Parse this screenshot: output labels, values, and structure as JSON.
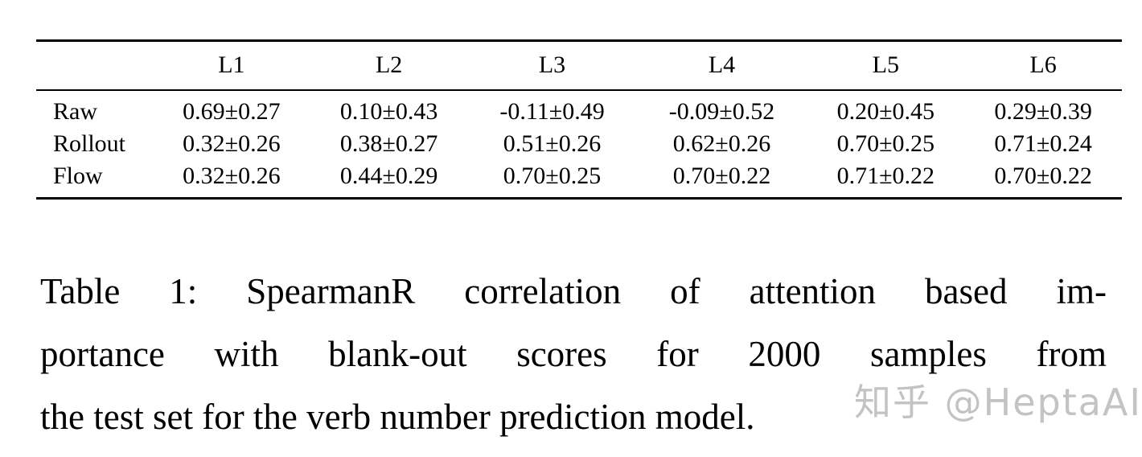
{
  "table": {
    "columns": [
      "L1",
      "L2",
      "L3",
      "L4",
      "L5",
      "L6"
    ],
    "rows": [
      {
        "label": "Raw",
        "values": [
          "0.69±0.27",
          "0.10±0.43",
          "-0.11±0.49",
          "-0.09±0.52",
          "0.20±0.45",
          "0.29±0.39"
        ]
      },
      {
        "label": "Rollout",
        "values": [
          "0.32±0.26",
          "0.38±0.27",
          "0.51±0.26",
          "0.62±0.26",
          "0.70±0.25",
          "0.71±0.24"
        ]
      },
      {
        "label": "Flow",
        "values": [
          "0.32±0.26",
          "0.44±0.29",
          "0.70±0.25",
          "0.70±0.22",
          "0.71±0.22",
          "0.70±0.22"
        ]
      }
    ]
  },
  "caption": {
    "label": "Table 1:",
    "lines": [
      "Table 1: SpearmanR correlation of attention based im-",
      "portance with blank-out scores for 2000 samples from",
      "the test set for the verb number prediction model."
    ]
  },
  "watermark": {
    "text": "知乎 @HeptaAI",
    "color": "#c3c3c3"
  },
  "colors": {
    "text": "#000000",
    "background": "#ffffff",
    "rule": "#000000"
  }
}
